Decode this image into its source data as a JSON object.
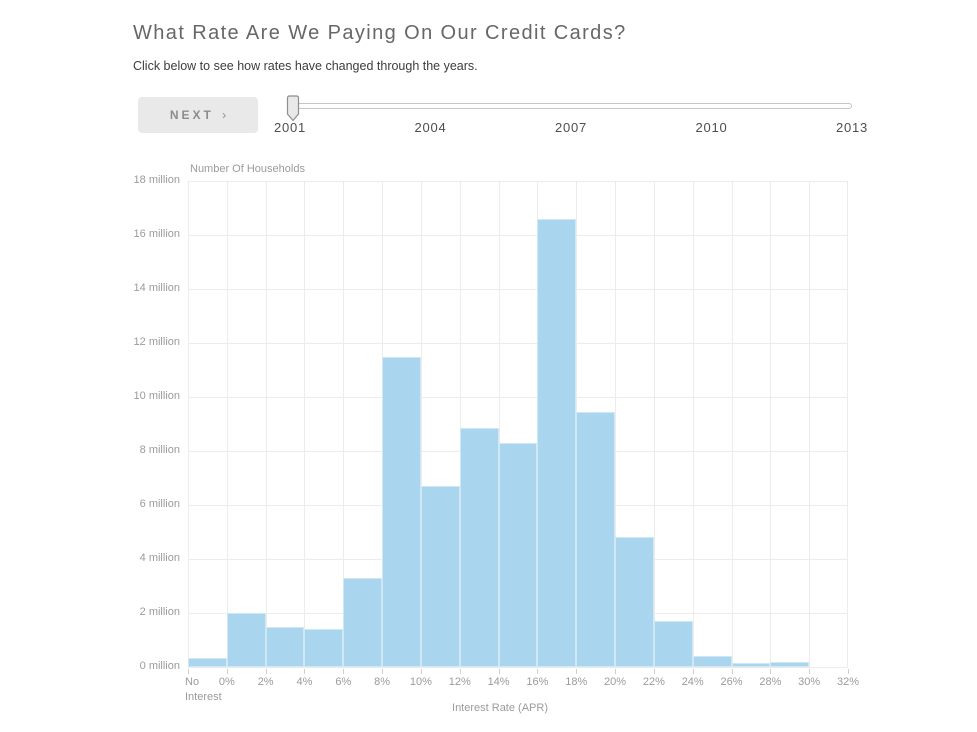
{
  "page": {
    "title": "What Rate Are We Paying On Our Credit Cards?",
    "subtitle": "Click below to see how rates have changed through the years."
  },
  "controls": {
    "next_button_label": "NEXT",
    "next_button_chevron": "›",
    "slider": {
      "labels": [
        "2001",
        "2004",
        "2007",
        "2010",
        "2013"
      ],
      "selected_value": "2001",
      "handle_index": 0
    }
  },
  "chart_data": {
    "type": "bar",
    "title": "",
    "xlabel": "Interest Rate (APR)",
    "ylabel": "Number Of Households",
    "x_tick_labels": [
      "No\nInterest",
      "0%",
      "2%",
      "4%",
      "6%",
      "8%",
      "10%",
      "12%",
      "14%",
      "16%",
      "18%",
      "20%",
      "22%",
      "24%",
      "26%",
      "28%",
      "30%",
      "32%"
    ],
    "categories": [
      "No Interest",
      "0-2%",
      "2-4%",
      "4-6%",
      "6-8%",
      "8-10%",
      "10-12%",
      "12-14%",
      "14-16%",
      "16-18%",
      "18-20%",
      "20-22%",
      "22-24%",
      "24-26%",
      "26-28%",
      "28-30%",
      "30-32%"
    ],
    "values_millions": [
      0.35,
      2.0,
      1.5,
      1.4,
      3.3,
      11.5,
      6.7,
      8.85,
      8.3,
      16.6,
      9.45,
      4.8,
      1.7,
      0.4,
      0.15,
      0.2,
      0
    ],
    "ylim_millions": [
      0,
      18
    ],
    "y_tick_step_millions": 2,
    "y_tick_suffix": " million",
    "bar_color": "#a9d5ef",
    "grid": true,
    "legend": "none"
  }
}
